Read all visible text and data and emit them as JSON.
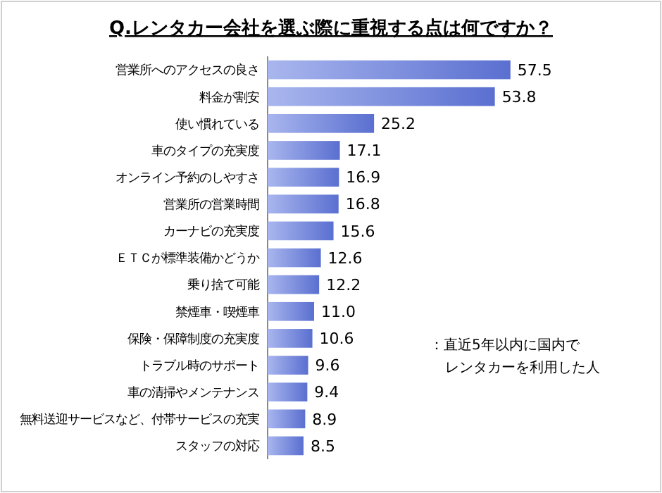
{
  "chart_data": {
    "type": "bar",
    "orientation": "horizontal",
    "title": "Q.レンタカー会社を選ぶ際に重視する点は何ですか？",
    "categories": [
      "営業所へのアクセスの良さ",
      "料金が割安",
      "使い慣れている",
      "車のタイプの充実度",
      "オンライン予約のしやすさ",
      "営業所の営業時間",
      "カーナビの充実度",
      "ＥＴＣが標準装備かどうか",
      "乗り捨て可能",
      "禁煙車・喫煙車",
      "保険・保障制度の充実度",
      "トラブル時のサポート",
      "車の清掃やメンテナンス",
      "無料送迎サービスなど、付帯サービスの充実",
      "スタッフの対応"
    ],
    "values": [
      57.5,
      53.8,
      25.2,
      17.1,
      16.9,
      16.8,
      15.6,
      12.6,
      12.2,
      11.0,
      10.6,
      9.6,
      9.4,
      8.9,
      8.5
    ],
    "value_labels": [
      "57.5",
      "53.8",
      "25.2",
      "17.1",
      "16.9",
      "16.8",
      "15.6",
      "12.6",
      "12.2",
      "11.0",
      "10.6",
      "9.6",
      "9.4",
      "8.9",
      "8.5"
    ],
    "color": "#5a6fd0",
    "annotations": [
      "：直近5年以内に国内でレンタカーを利用した人"
    ]
  }
}
